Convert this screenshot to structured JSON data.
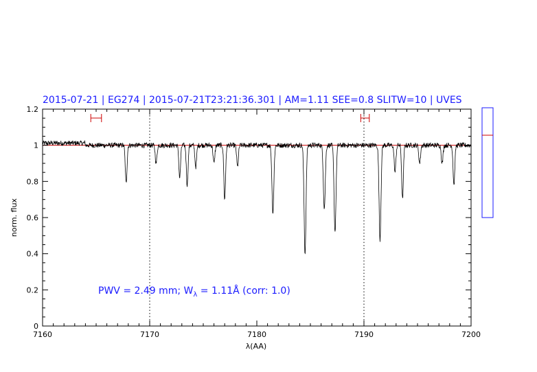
{
  "chart_data": {
    "type": "line",
    "title": "2015-07-21 | EG274 | 2015-07-21T23:21:36.301 | AM=1.11 SEE=0.8 SLITW=10 | UVES",
    "xlabel": "λ(AA)",
    "ylabel": "norm. flux",
    "xlim": [
      7160,
      7200
    ],
    "ylim": [
      0,
      1.2
    ],
    "x_ticks": [
      "7160",
      "7170",
      "7180",
      "7190",
      "7200"
    ],
    "y_ticks": [
      "0",
      "0.2",
      "0.4",
      "0.6",
      "0.8",
      "1",
      "1.2"
    ],
    "x_tick_values": [
      7160,
      7170,
      7180,
      7190,
      7200
    ],
    "y_tick_values": [
      0,
      0.2,
      0.4,
      0.6,
      0.8,
      1.0,
      1.2
    ],
    "grid": false,
    "annotation_parts": {
      "prefix": "PWV = 2.49 mm; W",
      "subscript": "λ",
      "suffix": " = 1.11Å (corr: 1.0)"
    },
    "continuum_level": 1.0,
    "vertical_markers": [
      7170,
      7190
    ],
    "range_markers": [
      [
        7164.5,
        7165.5
      ],
      [
        7189.7,
        7190.5
      ]
    ],
    "absorption_lines": [
      {
        "center": 7167.8,
        "depth": 0.21
      },
      {
        "center": 7170.6,
        "depth": 0.1
      },
      {
        "center": 7172.8,
        "depth": 0.18
      },
      {
        "center": 7173.5,
        "depth": 0.22
      },
      {
        "center": 7174.3,
        "depth": 0.12
      },
      {
        "center": 7176.0,
        "depth": 0.1
      },
      {
        "center": 7177.0,
        "depth": 0.3
      },
      {
        "center": 7178.2,
        "depth": 0.12
      },
      {
        "center": 7181.5,
        "depth": 0.37
      },
      {
        "center": 7184.5,
        "depth": 0.6
      },
      {
        "center": 7186.3,
        "depth": 0.35
      },
      {
        "center": 7187.3,
        "depth": 0.48
      },
      {
        "center": 7191.5,
        "depth": 0.52
      },
      {
        "center": 7192.9,
        "depth": 0.15
      },
      {
        "center": 7193.6,
        "depth": 0.3
      },
      {
        "center": 7195.2,
        "depth": 0.1
      },
      {
        "center": 7197.3,
        "depth": 0.1
      },
      {
        "center": 7198.4,
        "depth": 0.22
      }
    ],
    "series": [
      {
        "line_color": "#000000",
        "continuum_color": "#cc0000"
      }
    ],
    "side_gauge": {
      "level": 0.75,
      "border_color": "#1a1aff",
      "level_color": "#cc0000"
    }
  }
}
